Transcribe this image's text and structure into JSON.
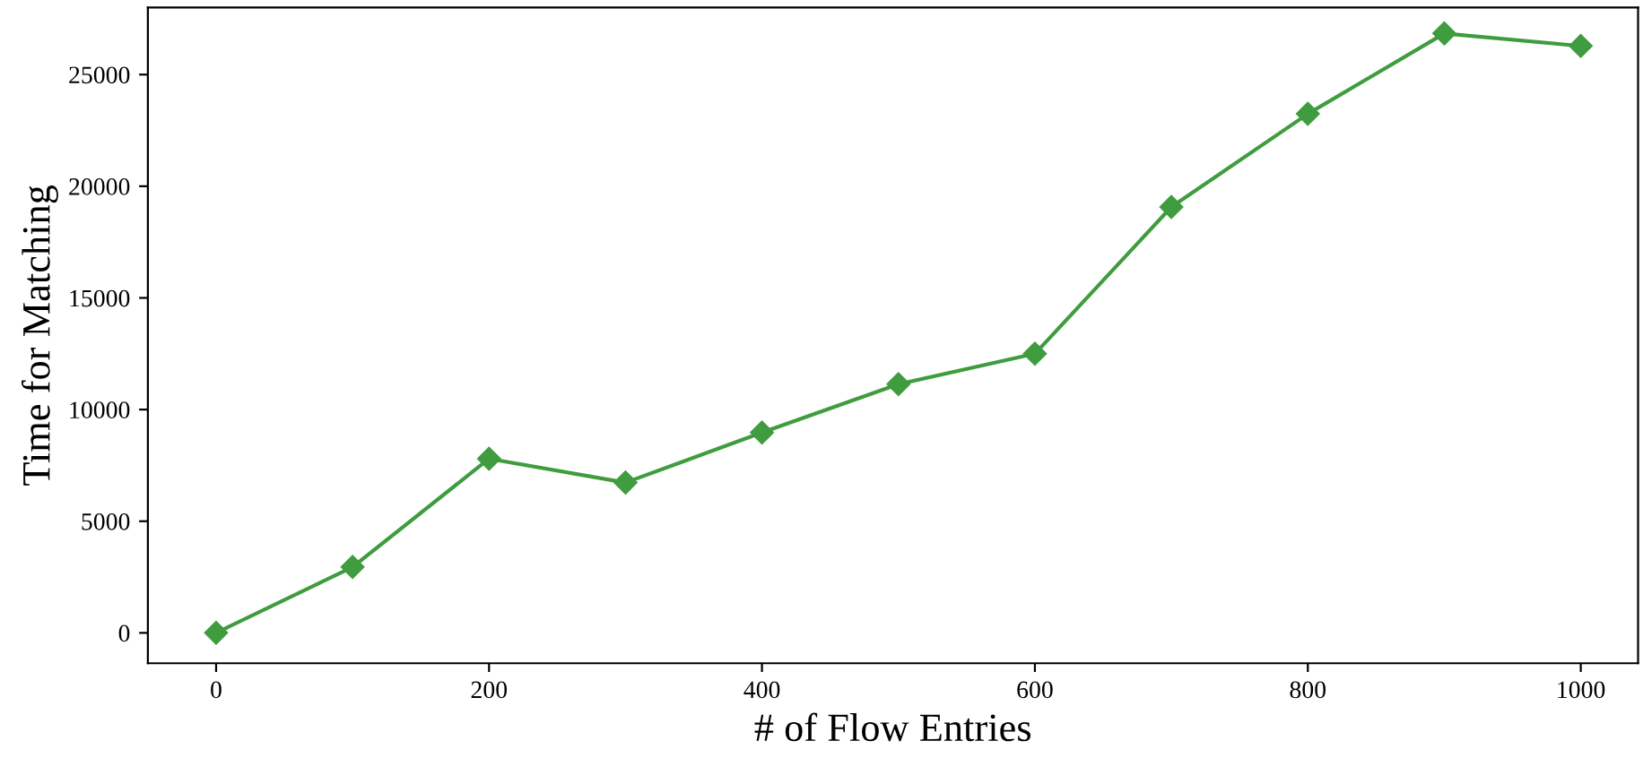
{
  "chart_data": {
    "type": "line",
    "xlabel": "# of Flow Entries",
    "ylabel": "Time for Matching",
    "x": [
      0,
      100,
      200,
      300,
      400,
      500,
      600,
      700,
      800,
      900,
      1000
    ],
    "series": [
      {
        "color": "#3f9c3f",
        "values": [
          0,
          2950,
          7800,
          6730,
          8970,
          11140,
          12500,
          19070,
          23240,
          26840,
          26280
        ]
      }
    ],
    "xlim": [
      -50,
      1042
    ],
    "ylim": [
      -1360,
      28000
    ],
    "xticks": [
      0,
      200,
      400,
      600,
      800,
      1000
    ],
    "yticks": [
      0,
      5000,
      10000,
      15000,
      20000,
      25000
    ],
    "marker": "diamond",
    "line_style": "solid",
    "grid": false
  }
}
